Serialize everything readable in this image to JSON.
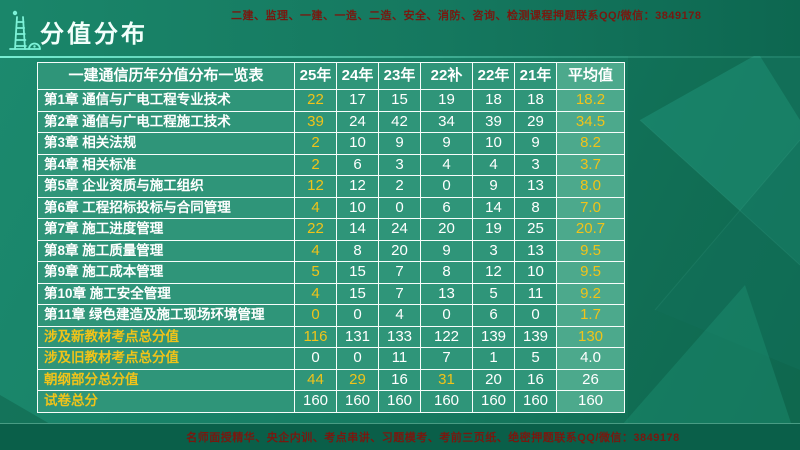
{
  "slide_header": {
    "title": "分值分布",
    "promo": "二建、监理、一建、一造、二造、安全、消防、咨询、检测课程押题联系QQ/微信：3849178"
  },
  "slide_footer": {
    "promo": "名师面授精华、央企内训、考点串讲、习题模考、考前三页纸、绝密押题联系QQ/微信：3849178"
  },
  "icons": {
    "logo": "signal-tower-icon"
  },
  "colors": {
    "background_teal": "#178066",
    "table_cell_green": "#2f9579",
    "avg_column_green": "#4ca98c",
    "highlight_yellow": "#f1c319",
    "promo_dark_red": "#78180f",
    "header_line_cyan": "#7df2d8",
    "border_white": "#f7fdfb"
  },
  "chart_data": {
    "type": "table",
    "title": "一建通信历年分值分布一览表",
    "year_columns": [
      "25年",
      "24年",
      "23年",
      "22补",
      "22年",
      "21年",
      "平均值"
    ],
    "legend_note": "yellow = highlighted values (25年 column, 平均值 column, and selected 朝纲 values)",
    "rows": [
      {
        "label": "第1章 通信与广电工程专业技术",
        "label_color": "white",
        "values": [
          "22",
          "17",
          "15",
          "19",
          "18",
          "18",
          "18.2"
        ],
        "highlight": [
          1,
          0,
          0,
          0,
          0,
          0,
          1
        ]
      },
      {
        "label": "第2章 通信与广电工程施工技术",
        "label_color": "white",
        "values": [
          "39",
          "24",
          "42",
          "34",
          "39",
          "29",
          "34.5"
        ],
        "highlight": [
          1,
          0,
          0,
          0,
          0,
          0,
          1
        ]
      },
      {
        "label": "第3章 相关法规",
        "label_color": "white",
        "values": [
          "2",
          "10",
          "9",
          "9",
          "10",
          "9",
          "8.2"
        ],
        "highlight": [
          1,
          0,
          0,
          0,
          0,
          0,
          1
        ]
      },
      {
        "label": "第4章 相关标准",
        "label_color": "white",
        "values": [
          "2",
          "6",
          "3",
          "4",
          "4",
          "3",
          "3.7"
        ],
        "highlight": [
          1,
          0,
          0,
          0,
          0,
          0,
          1
        ]
      },
      {
        "label": "第5章 企业资质与施工组织",
        "label_color": "white",
        "values": [
          "12",
          "12",
          "2",
          "0",
          "9",
          "13",
          "8.0"
        ],
        "highlight": [
          1,
          0,
          0,
          0,
          0,
          0,
          1
        ]
      },
      {
        "label": "第6章 工程招标投标与合同管理",
        "label_color": "white",
        "values": [
          "4",
          "10",
          "0",
          "6",
          "14",
          "8",
          "7.0"
        ],
        "highlight": [
          1,
          0,
          0,
          0,
          0,
          0,
          1
        ]
      },
      {
        "label": "第7章 施工进度管理",
        "label_color": "white",
        "values": [
          "22",
          "14",
          "24",
          "20",
          "19",
          "25",
          "20.7"
        ],
        "highlight": [
          1,
          0,
          0,
          0,
          0,
          0,
          1
        ]
      },
      {
        "label": "第8章 施工质量管理",
        "label_color": "white",
        "values": [
          "4",
          "8",
          "20",
          "9",
          "3",
          "13",
          "9.5"
        ],
        "highlight": [
          1,
          0,
          0,
          0,
          0,
          0,
          1
        ]
      },
      {
        "label": "第9章 施工成本管理",
        "label_color": "white",
        "values": [
          "5",
          "15",
          "7",
          "8",
          "12",
          "10",
          "9.5"
        ],
        "highlight": [
          1,
          0,
          0,
          0,
          0,
          0,
          1
        ]
      },
      {
        "label": "第10章 施工安全管理",
        "label_color": "white",
        "values": [
          "4",
          "15",
          "7",
          "13",
          "5",
          "11",
          "9.2"
        ],
        "highlight": [
          1,
          0,
          0,
          0,
          0,
          0,
          1
        ]
      },
      {
        "label": "第11章 绿色建造及施工现场环境管理",
        "label_color": "white",
        "values": [
          "0",
          "0",
          "4",
          "0",
          "6",
          "0",
          "1.7"
        ],
        "highlight": [
          1,
          0,
          0,
          0,
          0,
          0,
          1
        ]
      },
      {
        "label": "涉及新教材考点总分值",
        "label_color": "yellow",
        "values": [
          "116",
          "131",
          "133",
          "122",
          "139",
          "139",
          "130"
        ],
        "highlight": [
          1,
          0,
          0,
          0,
          0,
          0,
          1
        ]
      },
      {
        "label": "涉及旧教材考点总分值",
        "label_color": "yellow",
        "values": [
          "0",
          "0",
          "11",
          "7",
          "1",
          "5",
          "4.0"
        ],
        "highlight": [
          0,
          0,
          0,
          0,
          0,
          0,
          0
        ]
      },
      {
        "label": "朝纲部分总分值",
        "label_color": "yellow",
        "values": [
          "44",
          "29",
          "16",
          "31",
          "20",
          "16",
          "26"
        ],
        "highlight": [
          1,
          1,
          0,
          1,
          0,
          0,
          0
        ]
      },
      {
        "label": "试卷总分",
        "label_color": "yellow",
        "values": [
          "160",
          "160",
          "160",
          "160",
          "160",
          "160",
          "160"
        ],
        "highlight": [
          0,
          0,
          0,
          0,
          0,
          0,
          0
        ]
      }
    ]
  }
}
